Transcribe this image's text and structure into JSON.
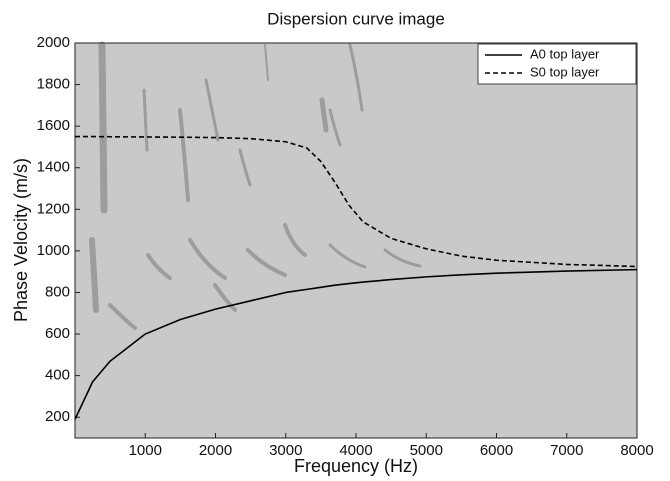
{
  "chart_data": {
    "type": "line",
    "title": "Dispersion curve image",
    "x_label": "Frequency (Hz)",
    "y_label": "Phase Velocity (m/s)",
    "x": [
      0,
      250,
      500,
      1000,
      1500,
      2000,
      2500,
      3000,
      3300,
      3500,
      3700,
      3900,
      4100,
      4500,
      5000,
      5500,
      6000,
      7000,
      8000
    ],
    "series": [
      {
        "name": "A0 top layer",
        "color": "#000000",
        "style": "solid",
        "values": [
          190,
          370,
          470,
          600,
          670,
          720,
          760,
          800,
          815,
          825,
          835,
          843,
          850,
          862,
          875,
          885,
          893,
          903,
          910
        ]
      },
      {
        "name": "S0 top layer",
        "color": "#000000",
        "style": "dashed",
        "values": [
          1550,
          1550,
          1549,
          1548,
          1547,
          1545,
          1540,
          1525,
          1495,
          1430,
          1330,
          1220,
          1140,
          1060,
          1010,
          975,
          955,
          935,
          925
        ]
      }
    ],
    "xlim": [
      0,
      8000
    ],
    "xticks": [
      1000,
      2000,
      3000,
      4000,
      5000,
      6000,
      7000,
      8000
    ],
    "ylim": [
      100,
      2000
    ],
    "yticks": [
      200,
      400,
      600,
      800,
      1000,
      1200,
      1400,
      1600,
      1800,
      2000
    ],
    "legend": "upper right"
  }
}
